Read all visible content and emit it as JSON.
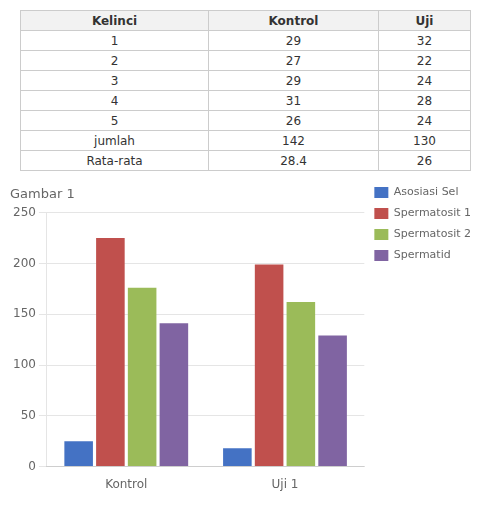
{
  "table": {
    "headers": [
      "Kelinci",
      "Kontrol",
      "Uji"
    ],
    "rows": [
      [
        "1",
        "29",
        "32"
      ],
      [
        "2",
        "27",
        "22"
      ],
      [
        "3",
        "29",
        "24"
      ],
      [
        "4",
        "31",
        "28"
      ],
      [
        "5",
        "26",
        "24"
      ],
      [
        "jumlah",
        "142",
        "130"
      ],
      [
        "Rata-rata",
        "28.4",
        "26"
      ]
    ]
  },
  "chart_data": {
    "type": "bar",
    "title": "Gambar 1",
    "categories": [
      "Kontrol",
      "Uji 1"
    ],
    "series": [
      {
        "name": "Asosiasi Sel",
        "color": "#4472c4",
        "values": [
          25,
          18
        ]
      },
      {
        "name": "Spermatosit 1",
        "color": "#c0504d",
        "values": [
          225,
          199
        ]
      },
      {
        "name": "Spermatosit 2",
        "color": "#9bbb59",
        "values": [
          176,
          162
        ]
      },
      {
        "name": "Spermatid",
        "color": "#8064a2",
        "values": [
          141,
          129
        ]
      }
    ],
    "ylim": [
      0,
      250
    ],
    "yticks": [
      0,
      50,
      100,
      150,
      200,
      250
    ],
    "grid": true,
    "legend": "right"
  }
}
